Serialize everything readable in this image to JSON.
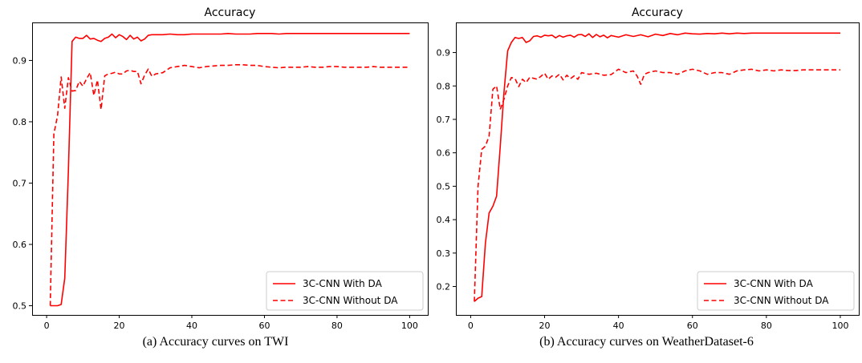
{
  "chart_data": [
    {
      "type": "line",
      "title": "Accuracy",
      "caption": "(a) Accuracy curves on TWI",
      "xlim": [
        -4,
        105
      ],
      "ylim": [
        0.485,
        0.962
      ],
      "xticks": [
        0,
        20,
        40,
        60,
        80,
        100
      ],
      "xtick_labels": [
        "0",
        "20",
        "40",
        "60",
        "80",
        "100"
      ],
      "yticks": [
        0.5,
        0.6,
        0.7,
        0.8,
        0.9
      ],
      "ytick_labels": [
        "0.5",
        "0.6",
        "0.7",
        "0.8",
        "0.9"
      ],
      "legend_position": "lower-right",
      "series": [
        {
          "name": "3C-CNN With DA",
          "color": "#ff0000",
          "style": "solid",
          "x": [
            1,
            2,
            3,
            4,
            5,
            6,
            7,
            8,
            9,
            10,
            11,
            12,
            13,
            14,
            15,
            16,
            17,
            18,
            19,
            20,
            21,
            22,
            23,
            24,
            25,
            26,
            27,
            28,
            29,
            30,
            32,
            34,
            36,
            38,
            40,
            42,
            44,
            46,
            48,
            50,
            52,
            54,
            56,
            58,
            60,
            62,
            64,
            66,
            68,
            70,
            72,
            74,
            76,
            78,
            80,
            82,
            84,
            86,
            88,
            90,
            92,
            94,
            96,
            98,
            100
          ],
          "y": [
            0.5,
            0.5,
            0.5,
            0.502,
            0.545,
            0.72,
            0.931,
            0.938,
            0.936,
            0.936,
            0.941,
            0.935,
            0.936,
            0.933,
            0.931,
            0.936,
            0.938,
            0.943,
            0.937,
            0.942,
            0.939,
            0.934,
            0.941,
            0.935,
            0.938,
            0.932,
            0.935,
            0.941,
            0.942,
            0.942,
            0.942,
            0.943,
            0.942,
            0.942,
            0.943,
            0.943,
            0.943,
            0.943,
            0.943,
            0.944,
            0.943,
            0.943,
            0.943,
            0.944,
            0.944,
            0.944,
            0.943,
            0.944,
            0.944,
            0.944,
            0.944,
            0.944,
            0.944,
            0.944,
            0.944,
            0.944,
            0.944,
            0.944,
            0.944,
            0.944,
            0.944,
            0.944,
            0.944,
            0.944,
            0.944
          ]
        },
        {
          "name": "3C-CNN Without DA",
          "color": "#ff0000",
          "style": "dashed",
          "x": [
            1,
            2,
            3,
            4,
            5,
            6,
            7,
            8,
            9,
            10,
            11,
            12,
            13,
            14,
            15,
            16,
            17,
            18,
            19,
            20,
            21,
            22,
            23,
            24,
            25,
            26,
            27,
            28,
            29,
            30,
            32,
            34,
            36,
            38,
            40,
            42,
            44,
            46,
            48,
            50,
            52,
            54,
            56,
            58,
            60,
            62,
            64,
            66,
            68,
            70,
            72,
            74,
            76,
            78,
            80,
            82,
            84,
            86,
            88,
            90,
            92,
            94,
            96,
            98,
            100
          ],
          "y": [
            0.5,
            0.78,
            0.81,
            0.873,
            0.822,
            0.872,
            0.85,
            0.851,
            0.866,
            0.858,
            0.87,
            0.88,
            0.843,
            0.868,
            0.82,
            0.875,
            0.878,
            0.879,
            0.881,
            0.878,
            0.878,
            0.883,
            0.884,
            0.882,
            0.882,
            0.862,
            0.876,
            0.886,
            0.874,
            0.878,
            0.88,
            0.888,
            0.89,
            0.892,
            0.89,
            0.888,
            0.89,
            0.891,
            0.892,
            0.892,
            0.893,
            0.893,
            0.892,
            0.892,
            0.89,
            0.889,
            0.888,
            0.889,
            0.889,
            0.889,
            0.89,
            0.889,
            0.889,
            0.89,
            0.89,
            0.889,
            0.889,
            0.889,
            0.889,
            0.89,
            0.889,
            0.889,
            0.889,
            0.889,
            0.889
          ]
        }
      ]
    },
    {
      "type": "line",
      "title": "Accuracy",
      "caption": "(b) Accuracy curves on WeatherDataset-6",
      "xlim": [
        -4,
        105
      ],
      "ylim": [
        0.115,
        0.99
      ],
      "xticks": [
        0,
        20,
        40,
        60,
        80,
        100
      ],
      "xtick_labels": [
        "0",
        "20",
        "40",
        "60",
        "80",
        "100"
      ],
      "yticks": [
        0.2,
        0.3,
        0.4,
        0.5,
        0.6,
        0.7,
        0.8,
        0.9
      ],
      "ytick_labels": [
        "0.2",
        "0.3",
        "0.4",
        "0.5",
        "0.6",
        "0.7",
        "0.8",
        "0.9"
      ],
      "legend_position": "lower-right",
      "series": [
        {
          "name": "3C-CNN With DA",
          "color": "#ff0000",
          "style": "solid",
          "x": [
            1,
            2,
            3,
            4,
            5,
            6,
            7,
            8,
            9,
            10,
            11,
            12,
            13,
            14,
            15,
            16,
            17,
            18,
            19,
            20,
            21,
            22,
            23,
            24,
            25,
            26,
            27,
            28,
            29,
            30,
            31,
            32,
            33,
            34,
            35,
            36,
            37,
            38,
            40,
            42,
            44,
            46,
            48,
            50,
            52,
            54,
            56,
            58,
            60,
            62,
            64,
            66,
            68,
            70,
            72,
            74,
            76,
            78,
            80,
            82,
            84,
            86,
            88,
            90,
            92,
            94,
            96,
            98,
            100
          ],
          "y": [
            0.155,
            0.165,
            0.17,
            0.33,
            0.42,
            0.44,
            0.47,
            0.62,
            0.78,
            0.905,
            0.93,
            0.945,
            0.942,
            0.945,
            0.93,
            0.935,
            0.948,
            0.95,
            0.946,
            0.952,
            0.95,
            0.952,
            0.944,
            0.951,
            0.946,
            0.95,
            0.952,
            0.946,
            0.953,
            0.954,
            0.948,
            0.956,
            0.945,
            0.954,
            0.947,
            0.952,
            0.944,
            0.951,
            0.946,
            0.953,
            0.948,
            0.953,
            0.947,
            0.955,
            0.951,
            0.957,
            0.953,
            0.958,
            0.956,
            0.955,
            0.957,
            0.956,
            0.958,
            0.956,
            0.958,
            0.957,
            0.958,
            0.958,
            0.958,
            0.958,
            0.958,
            0.958,
            0.958,
            0.958,
            0.958,
            0.958,
            0.958,
            0.958,
            0.958
          ]
        },
        {
          "name": "3C-CNN Without DA",
          "color": "#ff0000",
          "style": "dashed",
          "x": [
            1,
            2,
            3,
            4,
            5,
            6,
            7,
            8,
            9,
            10,
            11,
            12,
            13,
            14,
            15,
            16,
            17,
            18,
            19,
            20,
            21,
            22,
            23,
            24,
            25,
            26,
            27,
            28,
            29,
            30,
            32,
            34,
            36,
            38,
            40,
            42,
            44,
            45,
            46,
            47,
            48,
            50,
            52,
            54,
            56,
            58,
            60,
            62,
            64,
            66,
            68,
            70,
            72,
            74,
            76,
            78,
            80,
            82,
            84,
            86,
            88,
            90,
            92,
            94,
            96,
            98,
            100
          ],
          "y": [
            0.155,
            0.5,
            0.61,
            0.62,
            0.65,
            0.79,
            0.8,
            0.73,
            0.76,
            0.8,
            0.825,
            0.822,
            0.798,
            0.82,
            0.81,
            0.826,
            0.823,
            0.82,
            0.829,
            0.838,
            0.82,
            0.83,
            0.826,
            0.835,
            0.818,
            0.832,
            0.822,
            0.83,
            0.82,
            0.84,
            0.835,
            0.838,
            0.832,
            0.834,
            0.85,
            0.84,
            0.845,
            0.83,
            0.805,
            0.835,
            0.84,
            0.845,
            0.84,
            0.84,
            0.835,
            0.845,
            0.85,
            0.845,
            0.835,
            0.84,
            0.84,
            0.835,
            0.845,
            0.848,
            0.85,
            0.845,
            0.848,
            0.845,
            0.848,
            0.846,
            0.846,
            0.848,
            0.848,
            0.848,
            0.848,
            0.848,
            0.848
          ]
        }
      ]
    }
  ]
}
